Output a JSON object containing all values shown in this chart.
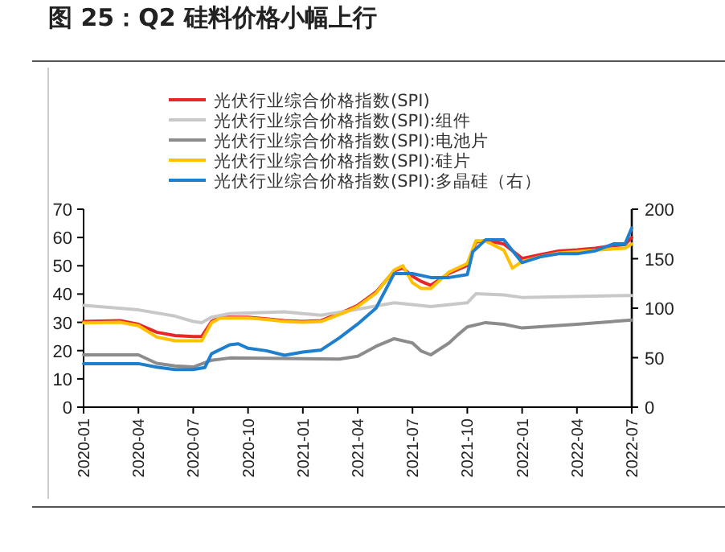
{
  "chart_data": {
    "type": "line",
    "title": "图 25：Q2 硅料价格小幅上行",
    "xlim": [
      "2020-01",
      "2022-07"
    ],
    "xticks": [
      "2020-01",
      "2020-04",
      "2020-07",
      "2020-10",
      "2021-01",
      "2021-04",
      "2021-07",
      "2021-10",
      "2022-01",
      "2022-04",
      "2022-07"
    ],
    "ylim": [
      0,
      70
    ],
    "yticks": [
      0,
      10,
      20,
      30,
      40,
      50,
      60,
      70
    ],
    "y2lim": [
      0,
      200
    ],
    "y2ticks": [
      0,
      50,
      100,
      150,
      200
    ],
    "legend": "top",
    "grid": false,
    "marker": "none",
    "line_style": "solid",
    "series": [
      {
        "name": "光伏行业综合价格指数(SPI)",
        "color": "#e8262a",
        "x": [
          "2020-01",
          "2020-03",
          "2020-04",
          "2020-05",
          "2020-06",
          "2020-07",
          "2020-07-15",
          "2020-08",
          "2020-08-15",
          "2020-10",
          "2020-11",
          "2020-12",
          "2021-01",
          "2021-02",
          "2021-03-15",
          "2021-04",
          "2021-05",
          "2021-06",
          "2021-06-15",
          "2021-07",
          "2021-07-15",
          "2021-08",
          "2021-09",
          "2021-10",
          "2021-10-15",
          "2021-11",
          "2021-12",
          "2022-01",
          "2022-02",
          "2022-03",
          "2022-04",
          "2022-05",
          "2022-06",
          "2022-06-20",
          "2022-07"
        ],
        "values": [
          30.3,
          30.6,
          29.3,
          26.5,
          25.3,
          25,
          25,
          30.3,
          31.8,
          31.8,
          31.2,
          30.6,
          30.3,
          30.6,
          34.4,
          36,
          40.7,
          48.2,
          49.2,
          46.3,
          44.5,
          43.1,
          47.3,
          50.1,
          58.3,
          59,
          57.7,
          52.6,
          53.9,
          55.2,
          55.6,
          56.2,
          57.1,
          57.5,
          60
        ]
      },
      {
        "name": "光伏行业综合价格指数(SPI):组件",
        "color": "#c8c8c8",
        "x": [
          "2020-01",
          "2020-02",
          "2020-04",
          "2020-06",
          "2020-07",
          "2020-07-15",
          "2020-08",
          "2020-09",
          "2020-12",
          "2021-01",
          "2021-02",
          "2021-04",
          "2021-06",
          "2021-08",
          "2021-10",
          "2021-10-15",
          "2021-12",
          "2022-01",
          "2022-07"
        ],
        "values": [
          36,
          35.5,
          34.4,
          32.2,
          30.3,
          29.9,
          31.8,
          33.1,
          33.7,
          33.1,
          32.5,
          34.6,
          36.9,
          35.6,
          36.9,
          40.1,
          39.7,
          38.8,
          39.5
        ]
      },
      {
        "name": "光伏行业综合价格指数(SPI):电池片",
        "color": "#8c8c8c",
        "x": [
          "2020-01",
          "2020-04",
          "2020-05",
          "2020-06",
          "2020-07",
          "2020-08",
          "2020-09",
          "2021-03",
          "2021-04",
          "2021-05",
          "2021-06",
          "2021-07",
          "2021-07-15",
          "2021-08",
          "2021-09",
          "2021-09-15",
          "2021-10",
          "2021-11",
          "2021-12",
          "2022-01",
          "2022-04",
          "2022-07"
        ],
        "values": [
          18.5,
          18.5,
          15.5,
          14.6,
          14.2,
          16.6,
          17.4,
          17,
          18,
          21.5,
          24.2,
          22.7,
          19.9,
          18.5,
          22.7,
          25.5,
          28.4,
          29.9,
          29.3,
          28,
          29.3,
          30.8
        ]
      },
      {
        "name": "光伏行业综合价格指数(SPI):硅片",
        "color": "#ffc000",
        "x": [
          "2020-01",
          "2020-03",
          "2020-04",
          "2020-05",
          "2020-06",
          "2020-07",
          "2020-07-15",
          "2020-08",
          "2020-08-15",
          "2020-10",
          "2020-11",
          "2020-12",
          "2021-01",
          "2021-02",
          "2021-03-15",
          "2021-04",
          "2021-05",
          "2021-06",
          "2021-06-15",
          "2021-07",
          "2021-07-15",
          "2021-08",
          "2021-09",
          "2021-10",
          "2021-10-15",
          "2021-11",
          "2021-12",
          "2021-12-15",
          "2022-01",
          "2022-02",
          "2022-03",
          "2022-04",
          "2022-05",
          "2022-06",
          "2022-06-20",
          "2022-07"
        ],
        "values": [
          29.8,
          30,
          28.8,
          24.8,
          23.5,
          23.5,
          23.5,
          29.8,
          31.5,
          31.5,
          31,
          30.3,
          30,
          30.3,
          34,
          35.6,
          40.3,
          48.5,
          50,
          44,
          42,
          42,
          47.8,
          50.8,
          58.8,
          58.8,
          55.5,
          49.2,
          51.5,
          53.2,
          54.5,
          55,
          55.5,
          56,
          56.2,
          57.7
        ]
      },
      {
        "name": "光伏行业综合价格指数(SPI):多晶硅（右）",
        "color": "#1f7fcf",
        "axis": "y2",
        "x": [
          "2020-01",
          "2020-04",
          "2020-05",
          "2020-06",
          "2020-07",
          "2020-07-20",
          "2020-08",
          "2020-09",
          "2020-09-15",
          "2020-10",
          "2020-11",
          "2020-12",
          "2021-01",
          "2021-02",
          "2021-03",
          "2021-04",
          "2021-05",
          "2021-06",
          "2021-07",
          "2021-08",
          "2021-09",
          "2021-10",
          "2021-10-10",
          "2021-11",
          "2021-12",
          "2022-01",
          "2022-02",
          "2022-03",
          "2022-04",
          "2022-05",
          "2022-06",
          "2022-06-20",
          "2022-07"
        ],
        "values": [
          44,
          44,
          40.5,
          38,
          38,
          40,
          54,
          63,
          64,
          59.5,
          57,
          52.4,
          55.7,
          57.8,
          70,
          84,
          100,
          135,
          135,
          131,
          131,
          134,
          157,
          169,
          169,
          146,
          152,
          155,
          155,
          158,
          165,
          165,
          181
        ]
      }
    ]
  }
}
